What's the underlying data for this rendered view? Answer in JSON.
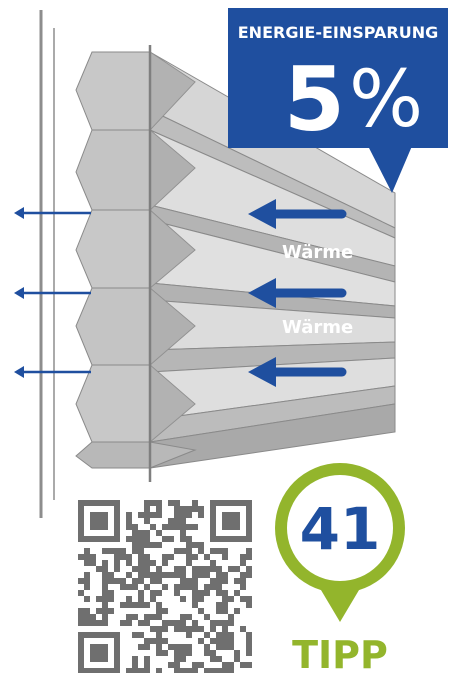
{
  "badge": {
    "title": "ENERGIE-EINSPARUNG",
    "value": "5",
    "unit": "%"
  },
  "labels": {
    "warmth_top": "Wärme",
    "warmth_bottom": "Wärme"
  },
  "tip": {
    "number": "41",
    "label": "TIPP"
  },
  "colors": {
    "blue": "#1f4f9f",
    "green": "#93b52c",
    "frame": "#8d8d8d",
    "pleat_light": "#dcdcdc",
    "pleat_dark": "#a9a9a9"
  },
  "icons": {
    "qr": "qr-code",
    "arrow": "arrow-left-icon"
  }
}
